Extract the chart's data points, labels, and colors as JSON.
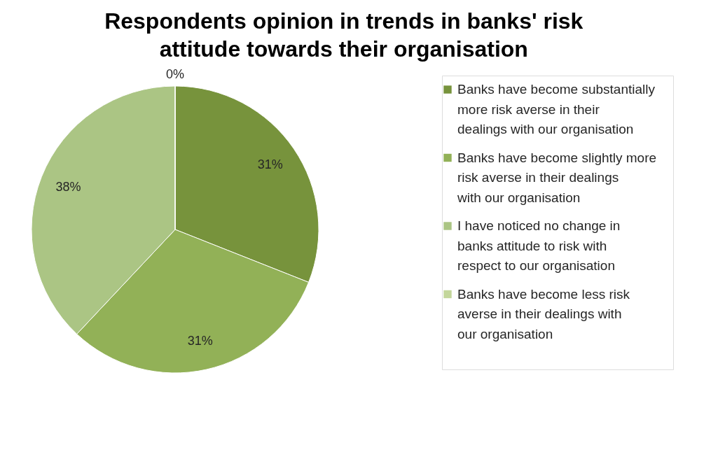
{
  "chart_data": {
    "type": "pie",
    "title": "Respondents opinion in trends in banks' risk attitude towards their organisation",
    "categories": [
      "Banks have become substantially more risk averse in their dealings with our organisation",
      "Banks have become slightly more risk averse in their dealings with our organisation",
      "I have noticed no change in banks attitude to risk with respect to our organisation",
      "Banks have become less risk averse in their dealings with our organisation"
    ],
    "values": [
      31,
      31,
      38,
      0
    ],
    "value_labels": [
      "31%",
      "31%",
      "38%",
      "0%"
    ],
    "colors": [
      "#77933c",
      "#92b157",
      "#abc584",
      "#c3d69b"
    ],
    "legend": "right"
  }
}
